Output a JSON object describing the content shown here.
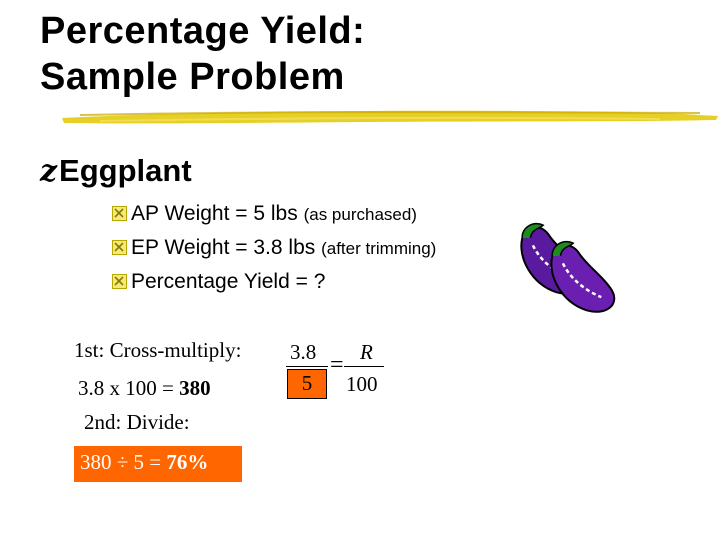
{
  "title": {
    "line1": "Percentage Yield:",
    "line2": "Sample Problem"
  },
  "main_bullet": {
    "glyph": "z",
    "label": "Eggplant"
  },
  "sub_bullets": [
    {
      "main": "AP Weight = 5 lbs ",
      "note": "(as purchased)"
    },
    {
      "main": "EP Weight = 3.8 lbs ",
      "note": "(after trimming)"
    },
    {
      "main": "Percentage Yield = ?",
      "note": ""
    }
  ],
  "steps": {
    "step1_label": "1st: Cross-multiply:",
    "step1_calc_prefix": "3.8 x 100 = ",
    "step1_calc_result": "380",
    "step2_label": "2nd: Divide:",
    "step2_calc_prefix": "380 ÷ 5 = ",
    "step2_calc_result": "76%"
  },
  "equation": {
    "left_numerator": "3.8",
    "left_denominator": "5",
    "equals": "=",
    "right_numerator": "R",
    "right_denominator": "100"
  },
  "colors": {
    "highlight": "#ff6600",
    "checkbox_fill": "#f4ea7a",
    "eggplant": "#6a1fb0"
  },
  "icons": {
    "bullet": "checkbox-x-icon",
    "clipart": "eggplant-icon"
  }
}
